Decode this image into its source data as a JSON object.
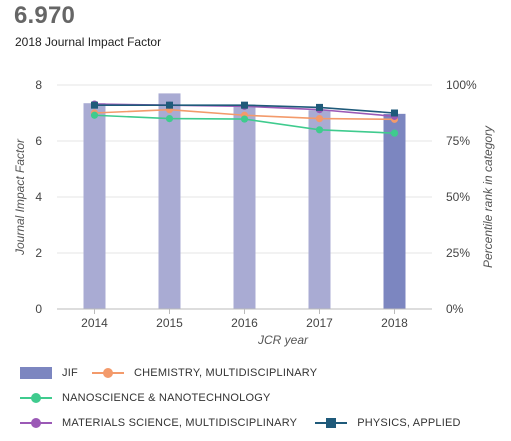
{
  "header": {
    "impact_value": "6.970",
    "impact_label": "2018 Journal Impact Factor"
  },
  "chart_data": {
    "type": "bar",
    "categories": [
      "2014",
      "2015",
      "2016",
      "2017",
      "2018"
    ],
    "xlabel": "JCR year",
    "ylabel_left": "Journal Impact Factor",
    "ylabel_right": "Percentile rank in category",
    "ylim_left": [
      0,
      8
    ],
    "yticks_left": [
      "0",
      "2",
      "4",
      "6",
      "8"
    ],
    "ylim_right": [
      0,
      100
    ],
    "yticks_right": [
      "0%",
      "25%",
      "50%",
      "75%",
      "100%"
    ],
    "grid": true,
    "legend_position": "bottom",
    "bar_series": {
      "name": "JIF",
      "values": [
        7.35,
        7.7,
        7.3,
        7.1,
        6.97
      ],
      "color": "#a9abd3",
      "highlight_color": "#7c86c0",
      "highlight_index": 4
    },
    "line_series": [
      {
        "name": "CHEMISTRY, MULTIDISCIPLINARY",
        "values": [
          87.5,
          89.0,
          86.5,
          85.0,
          84.7
        ],
        "color": "#f39a6b"
      },
      {
        "name": "NANOSCIENCE & NANOTECHNOLOGY",
        "values": [
          86.5,
          85.0,
          84.8,
          80.0,
          78.5
        ],
        "color": "#3fcb8e"
      },
      {
        "name": "MATERIALS SCIENCE, MULTIDISCIPLINARY",
        "values": [
          91.5,
          91.0,
          90.5,
          89.0,
          86.0
        ],
        "color": "#9b59b6"
      },
      {
        "name": "PHYSICS, APPLIED",
        "values": [
          91.0,
          91.0,
          91.0,
          90.0,
          87.5
        ],
        "color": "#1f5a7a"
      }
    ]
  }
}
